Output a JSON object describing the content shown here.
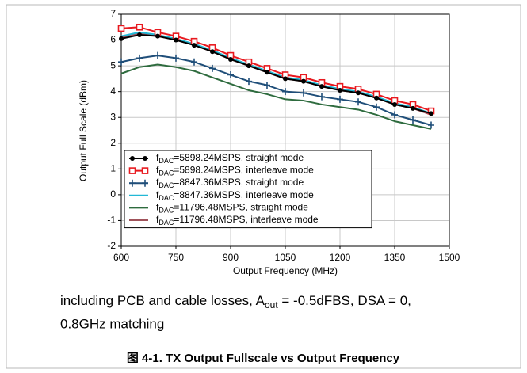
{
  "chart_data": {
    "type": "line",
    "xlabel": "Output Frequency (MHz)",
    "ylabel": "Output Full Scale (dBm)",
    "x": [
      600,
      650,
      700,
      750,
      800,
      850,
      900,
      950,
      1000,
      1050,
      1100,
      1150,
      1200,
      1250,
      1300,
      1350,
      1400,
      1450
    ],
    "xlim": [
      600,
      1500
    ],
    "xticks": [
      600,
      750,
      900,
      1050,
      1200,
      1350,
      1500
    ],
    "ylim": [
      -2,
      7
    ],
    "yticks": [
      -2,
      -1,
      0,
      1,
      2,
      3,
      4,
      5,
      6,
      7
    ],
    "grid": true,
    "legend": "lower left",
    "series": [
      {
        "name": [
          "f",
          "DAC",
          "=5898.24MSPS, straight mode"
        ],
        "color": "#000000",
        "marker": "circle",
        "values": [
          6.05,
          6.2,
          6.15,
          6.0,
          5.8,
          5.55,
          5.25,
          5.0,
          4.75,
          4.5,
          4.4,
          4.2,
          4.05,
          3.95,
          3.75,
          3.5,
          3.35,
          3.15
        ]
      },
      {
        "name": [
          "f",
          "DAC",
          "=5898.24MSPS, interleave mode"
        ],
        "color": "#e8191f",
        "marker": "square",
        "values": [
          6.45,
          6.5,
          6.3,
          6.15,
          5.95,
          5.7,
          5.4,
          5.15,
          4.9,
          4.65,
          4.55,
          4.35,
          4.2,
          4.1,
          3.9,
          3.65,
          3.5,
          3.25
        ]
      },
      {
        "name": [
          "f",
          "DAC",
          "=8847.36MSPS, straight mode"
        ],
        "color": "#1f4e79",
        "marker": "plus",
        "values": [
          5.15,
          5.3,
          5.4,
          5.3,
          5.15,
          4.9,
          4.65,
          4.4,
          4.25,
          4.0,
          3.95,
          3.8,
          3.7,
          3.6,
          3.4,
          3.1,
          2.9,
          2.7
        ]
      },
      {
        "name": [
          "f",
          "DAC",
          "=8847.36MSPS, interleave mode"
        ],
        "color": "#22b8d6",
        "marker": "none",
        "values": [
          6.15,
          6.3,
          6.2,
          6.05,
          5.85,
          5.6,
          5.3,
          5.05,
          4.8,
          4.55,
          4.45,
          4.25,
          4.1,
          4.0,
          3.8,
          3.55,
          3.4,
          3.15
        ]
      },
      {
        "name": [
          "f",
          "DAC",
          "=11796.48MSPS, straight mode"
        ],
        "color": "#2e6b3e",
        "marker": "none",
        "values": [
          4.7,
          4.95,
          5.05,
          4.95,
          4.8,
          4.55,
          4.3,
          4.05,
          3.9,
          3.7,
          3.65,
          3.5,
          3.4,
          3.3,
          3.1,
          2.85,
          2.7,
          2.55
        ]
      },
      {
        "name": [
          "f",
          "DAC",
          "=11796.48MSPS, interleave mode"
        ],
        "color": "#a0525a",
        "marker": "none",
        "values": [
          6.1,
          6.25,
          6.15,
          6.0,
          5.8,
          5.55,
          5.25,
          5.0,
          4.75,
          4.5,
          4.4,
          4.2,
          4.05,
          3.95,
          3.75,
          3.5,
          3.35,
          3.1
        ]
      }
    ]
  },
  "note": {
    "line1": [
      "including PCB and cable losses, A",
      "out",
      " = -0.5dFBS, DSA = 0,"
    ],
    "line2": "0.8GHz matching"
  },
  "caption": "图 4-1. TX Output Fullscale vs Output Frequency"
}
